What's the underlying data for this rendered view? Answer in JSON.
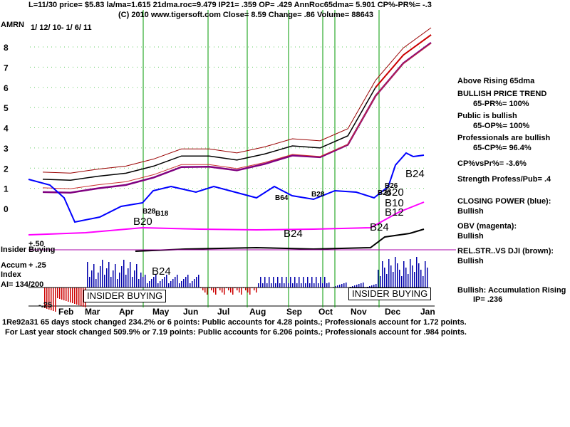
{
  "header": {
    "line1": "L=11/30  price= $5.83  la/ma=1.615 21dma.roc=9.479 IP21= .359 OP= .429 AnnRoc65dma= 5.901 CP%-PR%= -.3",
    "line2": "(C) 2010 www.tigersoft.com     Close=  8.59   Change= .86 Volume= 88643",
    "ticker": "AMRN",
    "date_range": "1/ 12/ 10-  1/ 6/ 11"
  },
  "right_panel": [
    {
      "id": "above-rising",
      "text": "Above Rising 65dma"
    },
    {
      "id": "bullish-price-trend",
      "text": "BULLISH PRICE TREND"
    },
    {
      "id": "pr-value",
      "text": "65-PR%= 100%"
    },
    {
      "id": "public-bullish",
      "text": "Public is bullish"
    },
    {
      "id": "op-value",
      "text": "65-OP%= 100%"
    },
    {
      "id": "pros-bullish",
      "text": "Professionals are bullish"
    },
    {
      "id": "cp-value",
      "text": "65-CP%= 96.4%"
    },
    {
      "id": "cp-vs-pr",
      "text": "CP%vsPr%= -3.6%"
    },
    {
      "id": "strength",
      "text": "Strength Profess/Pub= .4"
    },
    {
      "id": "closing-power",
      "text": "CLOSING POWER (blue):"
    },
    {
      "id": "closing-power-status",
      "text": "Bullish"
    },
    {
      "id": "obv",
      "text": "OBV (magenta):"
    },
    {
      "id": "obv-status",
      "text": "Bullish"
    },
    {
      "id": "relstr",
      "text": "REL.STR..VS DJI (brown):"
    },
    {
      "id": "relstr-status",
      "text": "Bullish"
    },
    {
      "id": "accum-rising",
      "text": "Bullish: Accumulation Rising"
    },
    {
      "id": "ip-value",
      "text": "IP=  .236"
    }
  ],
  "footer": {
    "line1_overlap": "1Re92a31 65 days stock changed  234.2% or  6 points:  Public accounts for  4.28 points.;  Professionals account for  1.72 points.",
    "line2": "For Last year stock changed  509.9% or  7.19 points:  Public accounts for  6.206 points.;  Professionals account for  .984 points."
  },
  "left_labels": {
    "insider_buying": "Insider Buying",
    "accum_index": "Accum",
    "accum_index2": "Index",
    "ai": "AI= 134/200",
    "plus50": "+.50",
    "plus25": "+ .25",
    "minus25": "-.25"
  },
  "insider_boxes": [
    "INSIDER BUYING",
    "INSIDER BUYING"
  ],
  "signals": [
    {
      "label": "B20",
      "month": "Apr"
    },
    {
      "label": "B24",
      "month": "Apr-bottom"
    },
    {
      "label": "B24",
      "month": "Sep"
    },
    {
      "label": "B24",
      "month": "Nov"
    },
    {
      "label": "B24",
      "month": "Dec"
    },
    {
      "label": "B10",
      "month": "Nov"
    },
    {
      "label": "B12",
      "month": "Nov"
    },
    {
      "label": "B20",
      "month": "Nov-2"
    }
  ],
  "small_signals": [
    "B28",
    "B18",
    "B64",
    "B28",
    "B26",
    "B20"
  ],
  "chart_data": {
    "type": "line",
    "xlabel": "",
    "ylabel": "",
    "x_ticks": [
      "Feb",
      "Mar",
      "Apr",
      "May",
      "Jun",
      "Jul",
      "Aug",
      "Sep",
      "Oct",
      "Nov",
      "Dec",
      "Jan"
    ],
    "y_ticks": [
      "0",
      "1",
      "2",
      "3",
      "4",
      "5",
      "6",
      "7",
      "8"
    ],
    "ylim": [
      0,
      8.5
    ],
    "price_series": [
      {
        "x": "Jan",
        "y": 1.45
      },
      {
        "x": "Feb",
        "y": 1.4
      },
      {
        "x": "Mar",
        "y": 1.6
      },
      {
        "x": "Apr",
        "y": 1.75
      },
      {
        "x": "Apr-end",
        "y": 2.1
      },
      {
        "x": "May",
        "y": 2.6
      },
      {
        "x": "Jun",
        "y": 2.6
      },
      {
        "x": "Jul",
        "y": 2.4
      },
      {
        "x": "Aug",
        "y": 2.7
      },
      {
        "x": "Sep",
        "y": 3.1
      },
      {
        "x": "Oct",
        "y": 3.0
      },
      {
        "x": "Nov",
        "y": 3.6
      },
      {
        "x": "Nov-mid",
        "y": 6.0
      },
      {
        "x": "Dec",
        "y": 7.6
      },
      {
        "x": "Jan",
        "y": 8.6
      }
    ],
    "vertical_signal_lines": [
      "Apr",
      "Jun",
      "Jul",
      "Aug",
      "Sep",
      "Oct",
      "Oct-end",
      "Nov"
    ],
    "grid": false
  }
}
